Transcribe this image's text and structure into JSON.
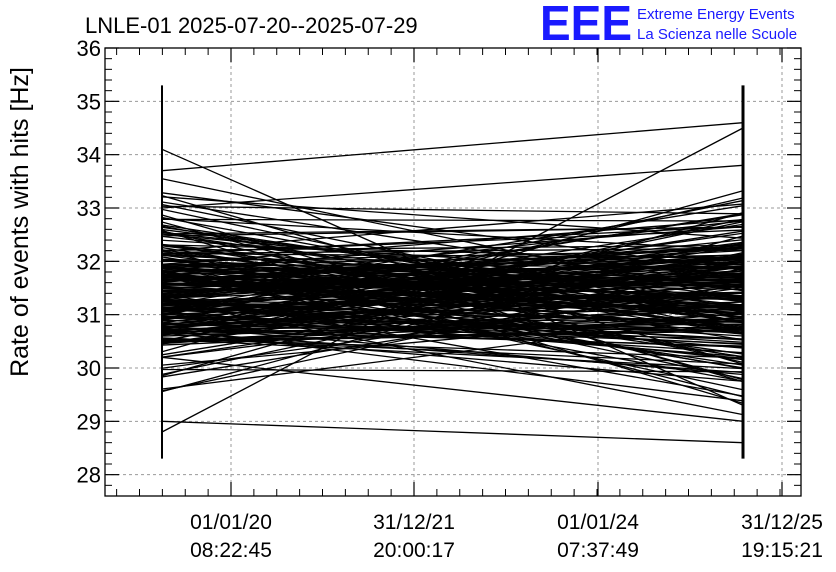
{
  "chart_data": {
    "type": "line",
    "title": "LNLE-01 2025-07-20--2025-07-29",
    "ylabel": "Rate of events with hits [Hz]",
    "ylim": [
      27.6,
      36.0
    ],
    "yticks": [
      28,
      29,
      30,
      31,
      32,
      33,
      34,
      35,
      36
    ],
    "xticks": [
      {
        "date": "01/01/20",
        "time": "08:22:45"
      },
      {
        "date": "31/12/21",
        "time": "20:00:17"
      },
      {
        "date": "01/01/24",
        "time": "07:37:49"
      },
      {
        "date": "31/12/25",
        "time": "19:15:21"
      }
    ],
    "grid": true,
    "series_color": "#000000",
    "x_start": "2018-12-05",
    "x_end": "2025-09-25",
    "start_range": [
      28.3,
      35.3
    ],
    "end_range": [
      28.3,
      35.3
    ],
    "sample_segments": [
      {
        "start": 34.1,
        "end": 29.3
      },
      {
        "start": 33.7,
        "end": 34.6
      },
      {
        "start": 28.8,
        "end": 34.5
      },
      {
        "start": 29.0,
        "end": 28.6
      },
      {
        "start": 33.0,
        "end": 33.8
      },
      {
        "start": 31.8,
        "end": 31.9
      },
      {
        "start": 30.2,
        "end": 29.0
      }
    ]
  },
  "logo": {
    "mark": "EEE",
    "line1": "Extreme Energy Events",
    "line2": "La Scienza nelle Scuole"
  }
}
